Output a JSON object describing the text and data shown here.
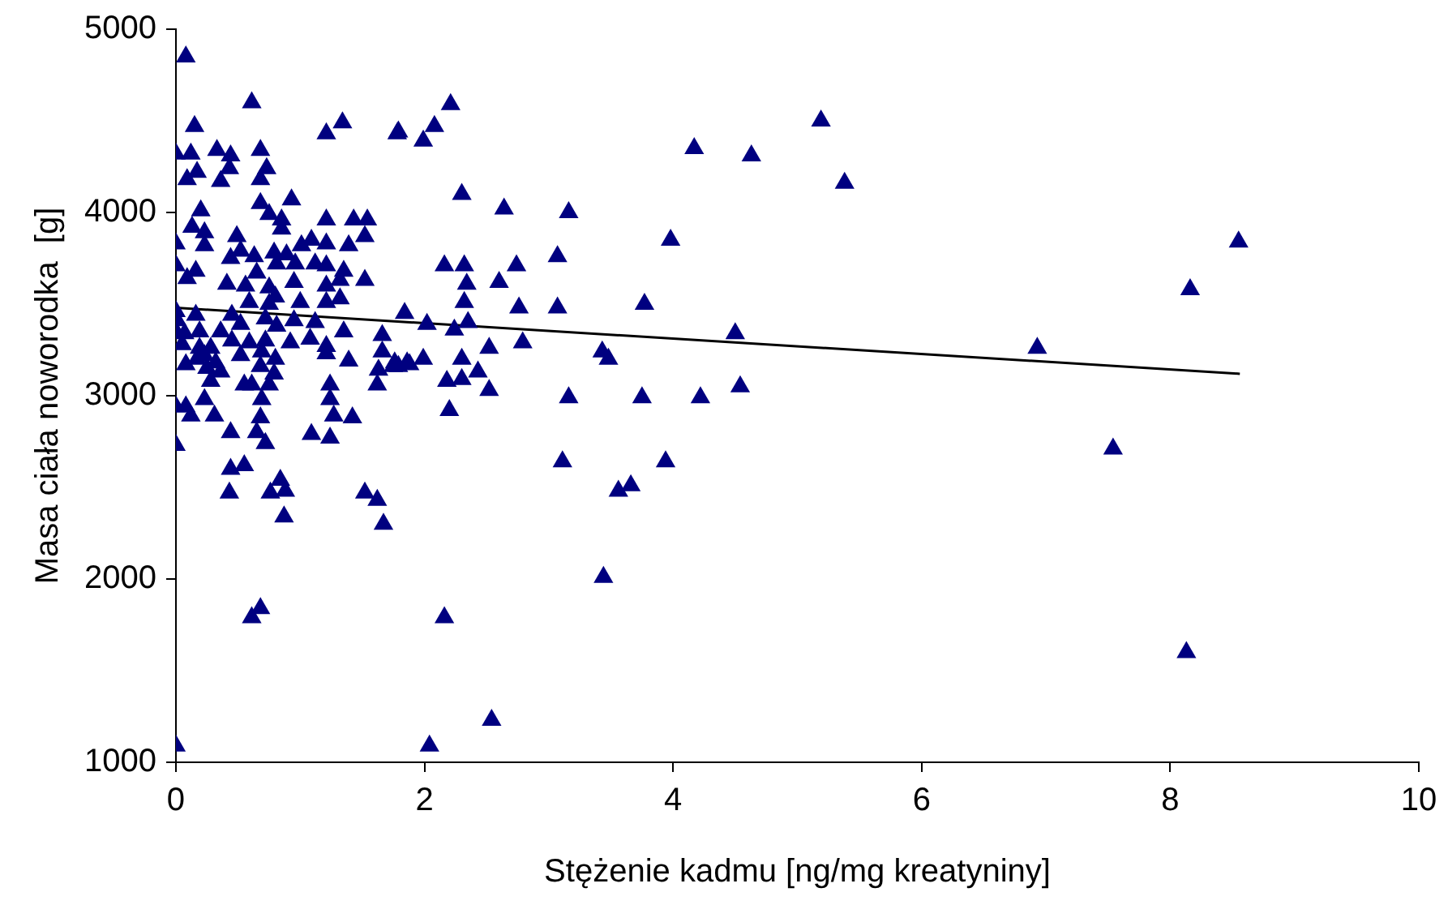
{
  "chart_data": {
    "type": "scatter",
    "xlabel": "Stężenie kadmu [ng/mg kreatyniny]",
    "ylabel": "Masa ciała noworodka  [g]",
    "xlim": [
      0,
      10
    ],
    "xticks": [
      0,
      2,
      4,
      6,
      8,
      10
    ],
    "ylim": [
      1000,
      5000
    ],
    "yticks": [
      1000,
      2000,
      3000,
      4000,
      5000
    ],
    "grid": false,
    "legend": false,
    "marker": "triangle",
    "series": [
      {
        "color": "#000080",
        "x": [
          0.08,
          0.61,
          0.15,
          0.0,
          0.12,
          0.33,
          0.44,
          0.68,
          0.73,
          1.21,
          1.34,
          1.78,
          0.09,
          0.17,
          0.36,
          0.43,
          0.68,
          0.68,
          0.93,
          0.75,
          0.2,
          0.13,
          0.23,
          0.23,
          0.0,
          0.85,
          0.85,
          1.21,
          1.43,
          1.54,
          1.52,
          0.49,
          0.0,
          0.16,
          0.09,
          0.44,
          0.52,
          0.63,
          0.79,
          0.89,
          1.01,
          1.09,
          1.21,
          1.39,
          0.65,
          0.81,
          0.96,
          1.12,
          1.21,
          1.35,
          1.52,
          0.41,
          0.56,
          0.75,
          0.95,
          1.21,
          1.32,
          0.0,
          0.59,
          0.75,
          0.8,
          1.0,
          1.21,
          1.32,
          1.84,
          0.01,
          0.16,
          0.45,
          0.52,
          0.72,
          0.81,
          0.95,
          1.12,
          0.0,
          0.19,
          0.36,
          0.07,
          0.05,
          0.28,
          0.45,
          0.59,
          0.72,
          0.92,
          1.08,
          1.21,
          1.35,
          1.66,
          0.19,
          0.17,
          0.23,
          0.32,
          0.52,
          0.69,
          0.8,
          1.21,
          1.39,
          1.66,
          1.76,
          1.86,
          0.08,
          0.25,
          0.36,
          0.68,
          0.79,
          1.63,
          1.75,
          0.28,
          0.55,
          0.61,
          0.75,
          1.24,
          1.62,
          0.23,
          0.69,
          1.24,
          0.0,
          0.08,
          0.12,
          0.31,
          0.68,
          1.27,
          1.42,
          0.44,
          0.65,
          1.09,
          1.24,
          0.72,
          0.0,
          0.55,
          0.44,
          0.84,
          0.76,
          0.88,
          0.43,
          1.52,
          1.62,
          1.67,
          0.87,
          0.61,
          0.68,
          0.0,
          2.21,
          2.08,
          1.99,
          1.79,
          2.3,
          2.64,
          3.16,
          3.98,
          4.17,
          4.63,
          5.19,
          5.38,
          2.16,
          2.32,
          2.74,
          3.07,
          2.34,
          2.6,
          2.32,
          2.76,
          3.07,
          3.77,
          2.02,
          2.24,
          2.35,
          4.5,
          3.43,
          3.48,
          2.79,
          2.52,
          2.3,
          1.99,
          1.88,
          1.79,
          2.43,
          2.18,
          2.3,
          2.52,
          2.2,
          3.16,
          3.75,
          4.22,
          4.54,
          3.11,
          3.94,
          3.56,
          3.66,
          3.44,
          2.16,
          2.54,
          2.04,
          6.93,
          7.54,
          8.16,
          8.55,
          8.13
        ],
        "values": [
          4850,
          4600,
          4470,
          4320,
          4320,
          4340,
          4310,
          4340,
          4240,
          4430,
          4490,
          4430,
          4180,
          4220,
          4170,
          4240,
          4180,
          4050,
          4070,
          3990,
          4010,
          3920,
          3890,
          3820,
          3830,
          3960,
          3910,
          3960,
          3960,
          3960,
          3870,
          3870,
          3710,
          3680,
          3640,
          3750,
          3790,
          3760,
          3780,
          3770,
          3820,
          3850,
          3830,
          3820,
          3670,
          3720,
          3720,
          3720,
          3710,
          3680,
          3630,
          3610,
          3600,
          3590,
          3620,
          3600,
          3630,
          3460,
          3510,
          3500,
          3540,
          3510,
          3510,
          3530,
          3450,
          3410,
          3440,
          3440,
          3390,
          3420,
          3380,
          3410,
          3400,
          3350,
          3350,
          3350,
          3340,
          3280,
          3260,
          3300,
          3290,
          3300,
          3290,
          3310,
          3270,
          3350,
          3330,
          3260,
          3200,
          3220,
          3180,
          3220,
          3240,
          3200,
          3230,
          3190,
          3240,
          3180,
          3180,
          3170,
          3150,
          3130,
          3160,
          3120,
          3140,
          3160,
          3080,
          3060,
          3060,
          3060,
          3060,
          3060,
          2980,
          2980,
          2980,
          2940,
          2940,
          2890,
          2890,
          2880,
          2890,
          2880,
          2800,
          2800,
          2790,
          2770,
          2740,
          2730,
          2620,
          2600,
          2540,
          2470,
          2480,
          2470,
          2470,
          2430,
          2300,
          2340,
          1790,
          1840,
          1090,
          4590,
          4470,
          4390,
          4440,
          4100,
          4020,
          4000,
          3850,
          4350,
          4310,
          4500,
          4160,
          3710,
          3710,
          3710,
          3760,
          3610,
          3620,
          3510,
          3480,
          3480,
          3500,
          3390,
          3360,
          3400,
          3340,
          3240,
          3200,
          3290,
          3260,
          3200,
          3200,
          3170,
          3160,
          3130,
          3080,
          3090,
          3030,
          2920,
          2990,
          2990,
          2990,
          3050,
          2640,
          2640,
          2480,
          2510,
          2010,
          1790,
          1230,
          1090,
          3260,
          2710,
          3580,
          3840,
          1600
        ]
      },
      {
        "type": "line",
        "color": "#000000",
        "marker": "none",
        "line_style": "solid",
        "x": [
          0,
          8.56
        ],
        "values": [
          3480,
          3120
        ]
      }
    ]
  }
}
